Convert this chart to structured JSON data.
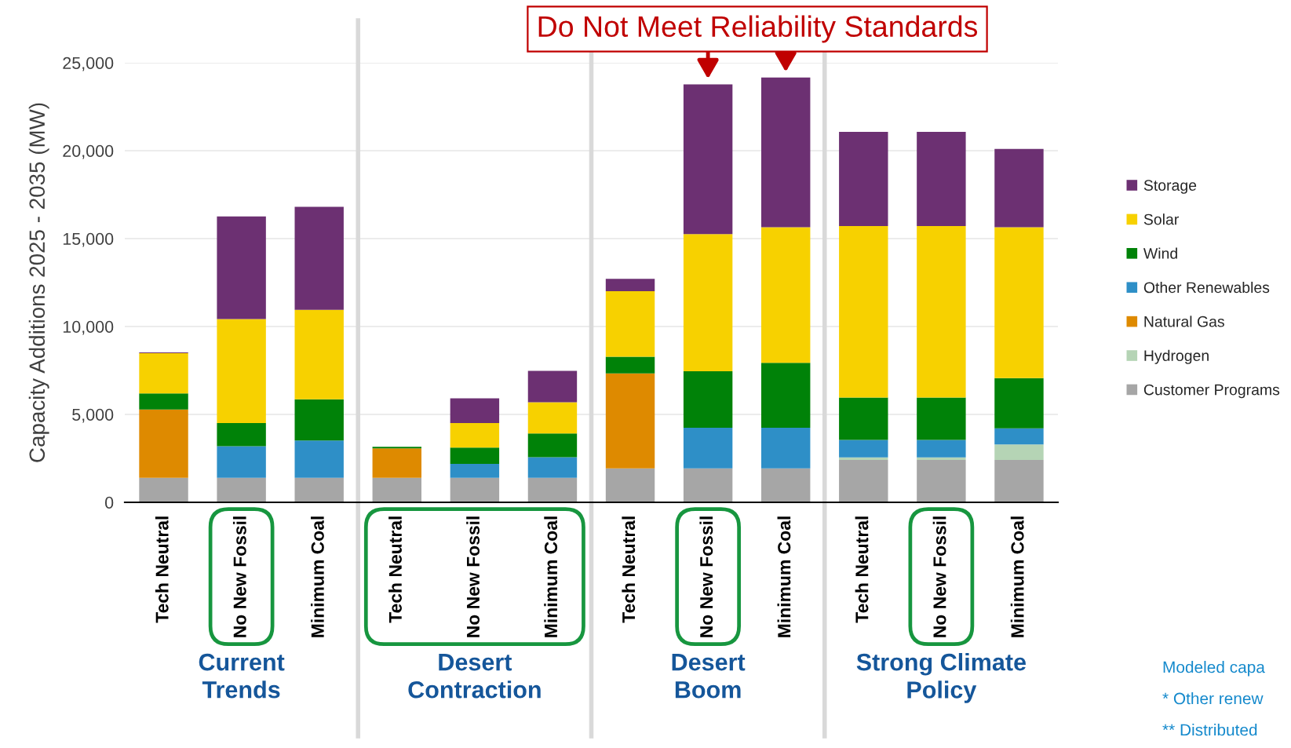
{
  "chart_data": {
    "type": "bar",
    "stacked": true,
    "categories": [
      "Tech Neutral",
      "No New Fossil",
      "Minimum Coal",
      "Tech Neutral",
      "No New Fossil",
      "Minimum Coal",
      "Tech Neutral",
      "No New Fossil",
      "Minimum Coal",
      "Tech Neutral",
      "No New Fossil",
      "Minimum Coal"
    ],
    "series": [
      {
        "name": "Customer Programs",
        "color": "#a6a6a6",
        "values": [
          1400,
          1400,
          1400,
          1400,
          1400,
          1400,
          1930,
          1930,
          1930,
          2410,
          2410,
          2410
        ]
      },
      {
        "name": "Hydrogen",
        "color": "#b5d4b5",
        "values": [
          null,
          null,
          null,
          null,
          null,
          null,
          null,
          null,
          null,
          150,
          150,
          880
        ]
      },
      {
        "name": "Natural Gas",
        "color": "#de8a00",
        "values": [
          3880,
          null,
          null,
          1670,
          null,
          null,
          5400,
          null,
          null,
          null,
          null,
          null
        ]
      },
      {
        "name": "Other Renewables",
        "color": "#2e8fc7",
        "values": [
          null,
          1790,
          2120,
          null,
          790,
          1170,
          null,
          2310,
          2310,
          990,
          990,
          920
        ]
      },
      {
        "name": "Wind",
        "color": "#008208",
        "values": [
          910,
          1320,
          2340,
          90,
          920,
          1350,
          950,
          3220,
          3700,
          2410,
          2410,
          2850
        ]
      },
      {
        "name": "Solar",
        "color": "#f7d100",
        "values": [
          2290,
          5910,
          5090,
          null,
          1400,
          1770,
          3730,
          7800,
          7710,
          9750,
          9750,
          8590
        ]
      },
      {
        "name": "Storage",
        "color": "#6c3072",
        "values": [
          50,
          5840,
          5860,
          null,
          1400,
          1790,
          700,
          8510,
          8510,
          5360,
          5360,
          4450
        ]
      }
    ],
    "ylabel": "Capacity Additions 2025 - 2035 (MW)",
    "ylim": [
      0,
      25000
    ],
    "yticks": [
      0,
      {
        "value": 5000,
        "label": "5,000"
      },
      {
        "value": 10000,
        "label": "10,000"
      },
      {
        "value": 15000,
        "label": "15,000"
      },
      {
        "value": 20000,
        "label": "20,000"
      },
      {
        "value": 25000,
        "label": "25,000"
      }
    ],
    "grid": "y",
    "legend": "right",
    "annotations": [
      "Do Not Meet Reliability Standards",
      "Current Trends",
      "Desert Contraction",
      "Desert Boom",
      "Strong Climate Policy",
      "Modeled capa",
      "* Other renew",
      "** Distributed"
    ]
  }
}
